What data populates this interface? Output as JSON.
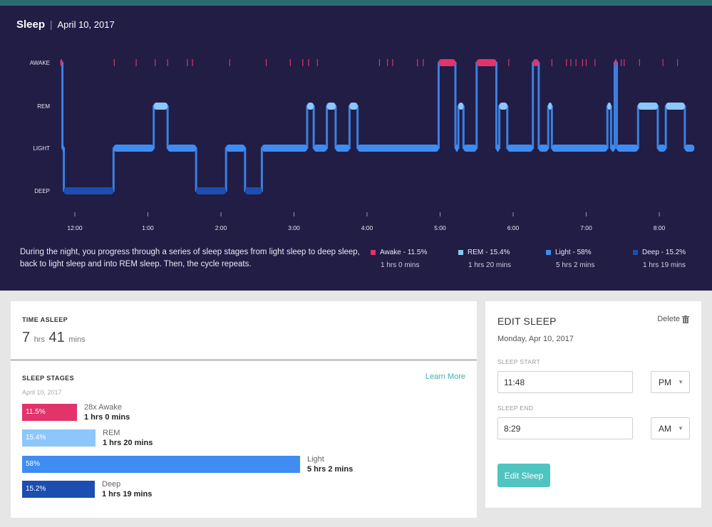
{
  "chart_data": {
    "type": "hypnogram",
    "title": "Sleep",
    "date": "April 10, 2017",
    "stage_labels": [
      "AWAKE",
      "REM",
      "LIGHT",
      "DEEP"
    ],
    "time_labels": [
      "12:00",
      "1:00",
      "2:00",
      "3:00",
      "4:00",
      "5:00",
      "6:00",
      "7:00",
      "8:00"
    ],
    "time_ticks_hours": [
      0,
      1,
      2,
      3,
      4,
      5,
      6,
      7,
      8
    ],
    "x_range_hours": [
      -0.2,
      8.5
    ],
    "segments": [
      {
        "start": -0.2,
        "end": -0.17,
        "stage": "AWAKE"
      },
      {
        "start": -0.17,
        "end": -0.15,
        "stage": "LIGHT"
      },
      {
        "start": -0.15,
        "end": 0.53,
        "stage": "DEEP"
      },
      {
        "start": 0.53,
        "end": 1.08,
        "stage": "LIGHT"
      },
      {
        "start": 1.08,
        "end": 1.27,
        "stage": "REM"
      },
      {
        "start": 1.27,
        "end": 1.66,
        "stage": "LIGHT"
      },
      {
        "start": 1.66,
        "end": 2.07,
        "stage": "DEEP"
      },
      {
        "start": 2.07,
        "end": 2.33,
        "stage": "LIGHT"
      },
      {
        "start": 2.33,
        "end": 2.56,
        "stage": "DEEP"
      },
      {
        "start": 2.56,
        "end": 3.18,
        "stage": "LIGHT"
      },
      {
        "start": 3.18,
        "end": 3.27,
        "stage": "REM"
      },
      {
        "start": 3.27,
        "end": 3.45,
        "stage": "LIGHT"
      },
      {
        "start": 3.45,
        "end": 3.57,
        "stage": "REM"
      },
      {
        "start": 3.57,
        "end": 3.76,
        "stage": "LIGHT"
      },
      {
        "start": 3.76,
        "end": 3.87,
        "stage": "REM"
      },
      {
        "start": 3.87,
        "end": 4.98,
        "stage": "LIGHT"
      },
      {
        "start": 4.98,
        "end": 5.21,
        "stage": "AWAKE"
      },
      {
        "start": 5.21,
        "end": 5.25,
        "stage": "LIGHT"
      },
      {
        "start": 5.25,
        "end": 5.32,
        "stage": "REM"
      },
      {
        "start": 5.32,
        "end": 5.5,
        "stage": "LIGHT"
      },
      {
        "start": 5.5,
        "end": 5.77,
        "stage": "AWAKE"
      },
      {
        "start": 5.77,
        "end": 5.81,
        "stage": "LIGHT"
      },
      {
        "start": 5.81,
        "end": 5.92,
        "stage": "REM"
      },
      {
        "start": 5.92,
        "end": 6.27,
        "stage": "LIGHT"
      },
      {
        "start": 6.27,
        "end": 6.35,
        "stage": "AWAKE"
      },
      {
        "start": 6.35,
        "end": 6.48,
        "stage": "LIGHT"
      },
      {
        "start": 6.48,
        "end": 6.53,
        "stage": "REM"
      },
      {
        "start": 6.53,
        "end": 7.29,
        "stage": "LIGHT"
      },
      {
        "start": 7.29,
        "end": 7.34,
        "stage": "REM"
      },
      {
        "start": 7.34,
        "end": 7.39,
        "stage": "LIGHT"
      },
      {
        "start": 7.39,
        "end": 7.42,
        "stage": "AWAKE"
      },
      {
        "start": 7.42,
        "end": 7.71,
        "stage": "LIGHT"
      },
      {
        "start": 7.71,
        "end": 7.98,
        "stage": "REM"
      },
      {
        "start": 7.98,
        "end": 8.09,
        "stage": "LIGHT"
      },
      {
        "start": 8.09,
        "end": 8.35,
        "stage": "REM"
      },
      {
        "start": 8.35,
        "end": 8.48,
        "stage": "LIGHT"
      }
    ],
    "awake_ticks_hours": [
      0.54,
      0.84,
      1.1,
      1.27,
      1.54,
      1.61,
      2.12,
      2.62,
      2.95,
      3.12,
      3.2,
      3.32,
      4.17,
      4.28,
      4.35,
      4.69,
      4.77,
      5.94,
      6.53,
      6.73,
      6.79,
      6.86,
      6.95,
      7.0,
      7.12,
      7.48,
      7.52,
      7.73,
      8.05,
      8.25
    ],
    "colors": {
      "AWAKE": "#e2336b",
      "REM": "#8cc6fb",
      "LIGHT": "#3f8cf2",
      "DEEP": "#1b4eb0"
    },
    "legend": [
      {
        "name": "Awake",
        "percent": "11.5%",
        "duration": "1 hrs 0 mins"
      },
      {
        "name": "REM",
        "percent": "15.4%",
        "duration": "1 hrs 20 mins"
      },
      {
        "name": "Light",
        "percent": "58%",
        "duration": "5 hrs 2 mins"
      },
      {
        "name": "Deep",
        "percent": "15.2%",
        "duration": "1 hrs 19 mins"
      }
    ]
  },
  "header": {
    "title": "Sleep",
    "separator": "|",
    "date": "April 10, 2017"
  },
  "description": "During the night, you progress through a series of sleep stages from light sleep to deep sleep, back to light sleep and into REM sleep. Then, the cycle repeats.",
  "legend": {
    "awake": {
      "label": "Awake - 11.5%",
      "duration": "1 hrs 0 mins",
      "color": "#e2336b"
    },
    "rem": {
      "label": "REM - 15.4%",
      "duration": "1 hrs 20 mins",
      "color": "#8cc6fb"
    },
    "light": {
      "label": "Light - 58%",
      "duration": "5 hrs 2 mins",
      "color": "#3f8cf2"
    },
    "deep": {
      "label": "Deep - 15.2%",
      "duration": "1 hrs 19 mins",
      "color": "#1b4eb0"
    }
  },
  "summary": {
    "time_asleep_label": "TIME ASLEEP",
    "hours": "7",
    "hours_unit": "hrs",
    "minutes": "41",
    "minutes_unit": "mins"
  },
  "stages": {
    "title": "SLEEP STAGES",
    "learn_more": "Learn More",
    "date": "April 10, 2017",
    "items": [
      {
        "key": "awake",
        "percent": "11.5%",
        "fraction": 0.115,
        "name": "28x Awake",
        "duration": "1 hrs 0 mins",
        "color": "#e2336b"
      },
      {
        "key": "rem",
        "percent": "15.4%",
        "fraction": 0.154,
        "name": "REM",
        "duration": "1 hrs 20 mins",
        "color": "#8cc6fb"
      },
      {
        "key": "light",
        "percent": "58%",
        "fraction": 0.58,
        "name": "Light",
        "duration": "5 hrs 2 mins",
        "color": "#3f8cf2"
      },
      {
        "key": "deep",
        "percent": "15.2%",
        "fraction": 0.152,
        "name": "Deep",
        "duration": "1 hrs 19 mins",
        "color": "#1b4eb0"
      }
    ]
  },
  "edit": {
    "title": "EDIT SLEEP",
    "delete_label": "Delete",
    "date": "Monday, Apr 10, 2017",
    "start_label": "SLEEP START",
    "start_value": "11:48",
    "start_period": "PM",
    "end_label": "SLEEP END",
    "end_value": "8:29",
    "end_period": "AM",
    "button_label": "Edit Sleep"
  }
}
